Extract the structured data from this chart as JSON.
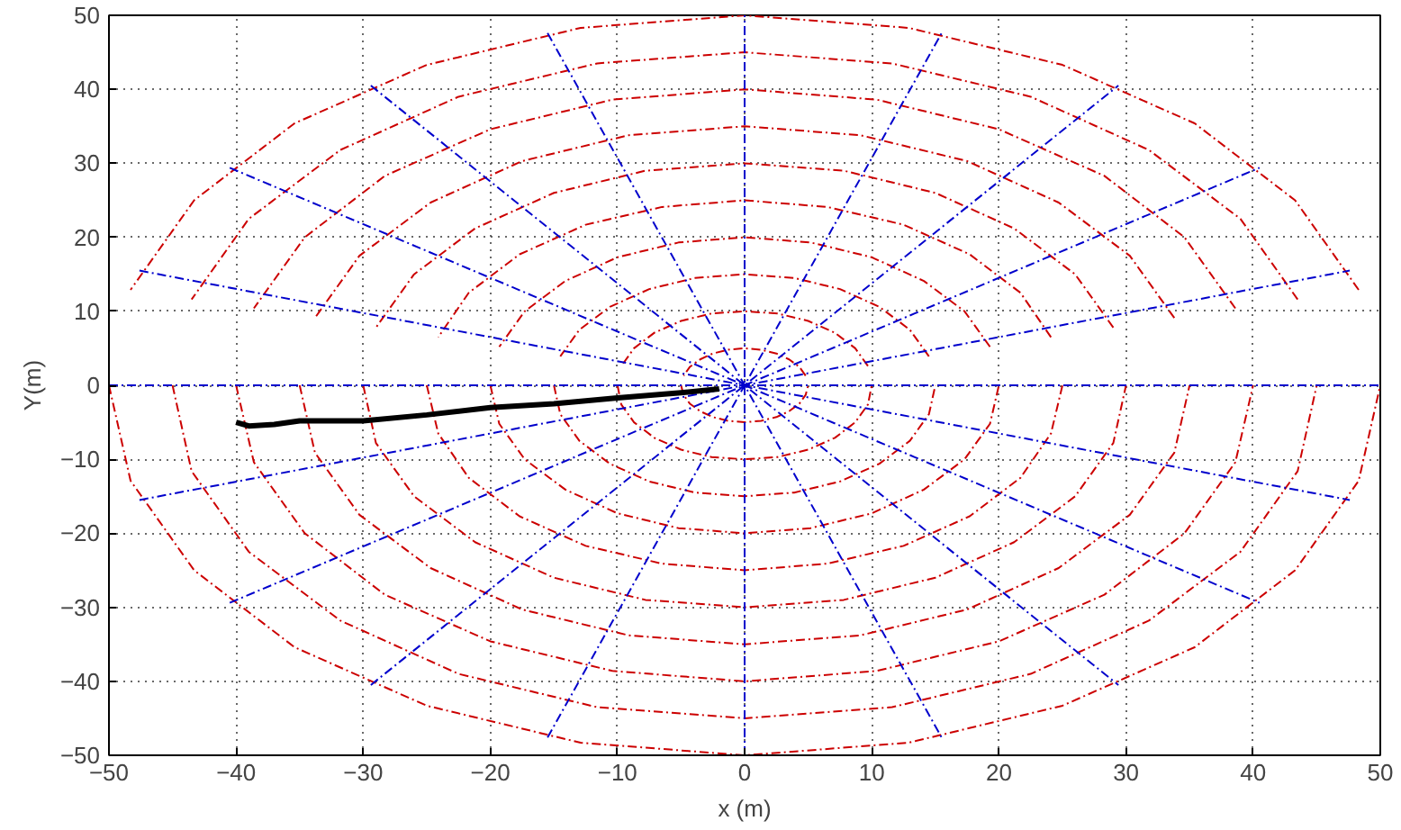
{
  "chart_data": {
    "type": "line",
    "xlabel": "x (m)",
    "ylabel": "Y(m)",
    "xlim": [
      -50,
      50
    ],
    "ylim": [
      -50,
      50
    ],
    "xticks": [
      -50,
      -40,
      -30,
      -20,
      -10,
      0,
      10,
      20,
      30,
      40,
      50
    ],
    "yticks": [
      -50,
      -40,
      -30,
      -20,
      -10,
      0,
      10,
      20,
      30,
      40,
      50
    ],
    "grid": true,
    "marker": "none",
    "series": [
      {
        "color": "#cc0000",
        "line_style": "dashed",
        "x": [
          4.8,
          4.3,
          3.5,
          2.5,
          1.3,
          0,
          -1.3,
          -2.5,
          -3.5,
          -4.3,
          -4.8
        ],
        "values": [
          1.3,
          2.5,
          3.5,
          4.3,
          4.8,
          5,
          4.8,
          4.3,
          3.5,
          2.5,
          1.3
        ]
      },
      {
        "color": "#cc0000",
        "line_style": "dashed",
        "x": [
          -5,
          -4.8,
          -4.3,
          -3.5,
          -2.5,
          -1.3,
          0,
          1.3,
          2.5,
          3.5,
          4.3,
          4.8,
          5
        ],
        "values": [
          0,
          -1.3,
          -2.5,
          -3.5,
          -4.3,
          -4.8,
          -5,
          -4.8,
          -4.3,
          -3.5,
          -2.5,
          -1.3,
          0
        ]
      },
      {
        "color": "#cc0000",
        "line_style": "dashed",
        "x": [
          9.7,
          8.7,
          7.1,
          5,
          2.6,
          0,
          -2.6,
          -5,
          -7.1,
          -8.7,
          -9.7
        ],
        "values": [
          2.6,
          5,
          7.1,
          8.7,
          9.7,
          10,
          9.7,
          8.7,
          7.1,
          5,
          2.6
        ]
      },
      {
        "color": "#cc0000",
        "line_style": "dashed",
        "x": [
          -10,
          -9.7,
          -8.7,
          -7.1,
          -5,
          -2.6,
          0,
          2.6,
          5,
          7.1,
          8.7,
          9.7,
          10
        ],
        "values": [
          0,
          -2.6,
          -5,
          -7.1,
          -8.7,
          -9.7,
          -10,
          -9.7,
          -8.7,
          -7.1,
          -5,
          -2.6,
          0
        ]
      },
      {
        "color": "#cc0000",
        "line_style": "dashed",
        "x": [
          14.5,
          13,
          10.6,
          7.5,
          3.9,
          0,
          -3.9,
          -7.5,
          -10.6,
          -13,
          -14.5
        ],
        "values": [
          3.9,
          7.5,
          10.6,
          13,
          14.5,
          15,
          14.5,
          13,
          10.6,
          7.5,
          3.9
        ]
      },
      {
        "color": "#cc0000",
        "line_style": "dashed",
        "x": [
          -15,
          -14.5,
          -13,
          -10.6,
          -7.5,
          -3.9,
          0,
          3.9,
          7.5,
          10.6,
          13,
          14.5,
          15
        ],
        "values": [
          0,
          -3.9,
          -7.5,
          -10.6,
          -13,
          -14.5,
          -15,
          -14.5,
          -13,
          -10.6,
          -7.5,
          -3.9,
          0
        ]
      },
      {
        "color": "#cc0000",
        "line_style": "dashed",
        "x": [
          19.3,
          17.3,
          14.1,
          10,
          5.2,
          0,
          -5.2,
          -10,
          -14.1,
          -17.3,
          -19.3
        ],
        "values": [
          5.2,
          10,
          14.1,
          17.3,
          19.3,
          20,
          19.3,
          17.3,
          14.1,
          10,
          5.2
        ]
      },
      {
        "color": "#cc0000",
        "line_style": "dashed",
        "x": [
          -20,
          -19.3,
          -17.3,
          -14.1,
          -10,
          -5.2,
          0,
          5.2,
          10,
          14.1,
          17.3,
          19.3,
          20
        ],
        "values": [
          0,
          -5.2,
          -10,
          -14.1,
          -17.3,
          -19.3,
          -20,
          -19.3,
          -17.3,
          -14.1,
          -10,
          -5.2,
          0
        ]
      },
      {
        "color": "#cc0000",
        "line_style": "dashed",
        "x": [
          24.1,
          21.7,
          17.7,
          12.5,
          6.5,
          0,
          -6.5,
          -12.5,
          -17.7,
          -21.7,
          -24.1
        ],
        "values": [
          6.5,
          12.5,
          17.7,
          21.7,
          24.1,
          25,
          24.1,
          21.7,
          17.7,
          12.5,
          6.5
        ]
      },
      {
        "color": "#cc0000",
        "line_style": "dashed",
        "x": [
          -25,
          -24.1,
          -21.7,
          -17.7,
          -12.5,
          -6.5,
          0,
          6.5,
          12.5,
          17.7,
          21.7,
          24.1,
          25
        ],
        "values": [
          0,
          -6.5,
          -12.5,
          -17.7,
          -21.7,
          -24.1,
          -25,
          -24.1,
          -21.7,
          -17.7,
          -12.5,
          -6.5,
          0
        ]
      },
      {
        "color": "#cc0000",
        "line_style": "dashed",
        "x": [
          29,
          26,
          21.2,
          15,
          7.8,
          0,
          -7.8,
          -15,
          -21.2,
          -26,
          -29
        ],
        "values": [
          7.8,
          15,
          21.2,
          26,
          29,
          30,
          29,
          26,
          21.2,
          15,
          7.8
        ]
      },
      {
        "color": "#cc0000",
        "line_style": "dashed",
        "x": [
          -30,
          -29,
          -26,
          -21.2,
          -15,
          -7.8,
          0,
          7.8,
          15,
          21.2,
          26,
          29,
          30
        ],
        "values": [
          0,
          -7.8,
          -15,
          -21.2,
          -26,
          -29,
          -30,
          -29,
          -26,
          -21.2,
          -15,
          -7.8,
          0
        ]
      },
      {
        "color": "#cc0000",
        "line_style": "dashed",
        "x": [
          33.8,
          30.3,
          24.7,
          17.5,
          9.1,
          0,
          -9.1,
          -17.5,
          -24.7,
          -30.3,
          -33.8
        ],
        "values": [
          9.1,
          17.5,
          24.7,
          30.3,
          33.8,
          35,
          33.8,
          30.3,
          24.7,
          17.5,
          9.1
        ]
      },
      {
        "color": "#cc0000",
        "line_style": "dashed",
        "x": [
          -35,
          -33.8,
          -30.3,
          -24.7,
          -17.5,
          -9.1,
          0,
          9.1,
          17.5,
          24.7,
          30.3,
          33.8,
          35
        ],
        "values": [
          0,
          -9.1,
          -17.5,
          -24.7,
          -30.3,
          -33.8,
          -35,
          -33.8,
          -30.3,
          -24.7,
          -17.5,
          -9.1,
          0
        ]
      },
      {
        "color": "#cc0000",
        "line_style": "dashed",
        "x": [
          38.6,
          34.6,
          28.3,
          20,
          10.4,
          0,
          -10.4,
          -20,
          -28.3,
          -34.6,
          -38.6
        ],
        "values": [
          10.4,
          20,
          28.3,
          34.6,
          38.6,
          40,
          38.6,
          34.6,
          28.3,
          20,
          10.4
        ]
      },
      {
        "color": "#cc0000",
        "line_style": "dashed",
        "x": [
          -40,
          -38.6,
          -34.6,
          -28.3,
          -20,
          -10.4,
          0,
          10.4,
          20,
          28.3,
          34.6,
          38.6,
          40
        ],
        "values": [
          0,
          -10.4,
          -20,
          -28.3,
          -34.6,
          -38.6,
          -40,
          -38.6,
          -34.6,
          -28.3,
          -20,
          -10.4,
          0
        ]
      },
      {
        "color": "#cc0000",
        "line_style": "dashed",
        "x": [
          43.5,
          39,
          31.8,
          22.5,
          11.6,
          0,
          -11.6,
          -22.5,
          -31.8,
          -39,
          -43.5
        ],
        "values": [
          11.6,
          22.5,
          31.8,
          39,
          43.5,
          45,
          43.5,
          39,
          31.8,
          22.5,
          11.6
        ]
      },
      {
        "color": "#cc0000",
        "line_style": "dashed",
        "x": [
          -45,
          -43.5,
          -39,
          -31.8,
          -22.5,
          -11.6,
          0,
          11.6,
          22.5,
          31.8,
          39,
          43.5,
          45
        ],
        "values": [
          0,
          -11.6,
          -22.5,
          -31.8,
          -39,
          -43.5,
          -45,
          -43.5,
          -39,
          -31.8,
          -22.5,
          -11.6,
          0
        ]
      },
      {
        "color": "#cc0000",
        "line_style": "dashed",
        "x": [
          48.3,
          43.3,
          35.4,
          25,
          12.9,
          0,
          -12.9,
          -25,
          -35.4,
          -43.3,
          -48.3
        ],
        "values": [
          12.9,
          25,
          35.4,
          43.3,
          48.3,
          50,
          48.3,
          43.3,
          35.4,
          25,
          12.9
        ]
      },
      {
        "color": "#cc0000",
        "line_style": "dashed",
        "x": [
          -50,
          -48.3,
          -43.3,
          -35.4,
          -25,
          -12.9,
          0,
          12.9,
          25,
          35.4,
          43.3,
          48.3,
          50
        ],
        "values": [
          0,
          -12.9,
          -25,
          -35.4,
          -43.3,
          -48.3,
          -50,
          -48.3,
          -43.3,
          -35.4,
          -25,
          -12.9,
          0
        ]
      },
      {
        "color": "#0000cc",
        "line_style": "dashed",
        "x": [
          -50,
          0,
          50
        ],
        "values": [
          0,
          0,
          0
        ]
      },
      {
        "color": "#0000cc",
        "line_style": "dashed",
        "x": [
          -47.6,
          0,
          47.6
        ],
        "values": [
          -15.5,
          0,
          15.5
        ]
      },
      {
        "color": "#0000cc",
        "line_style": "dashed",
        "x": [
          -40.5,
          0,
          40.5
        ],
        "values": [
          -29.4,
          0,
          29.4
        ]
      },
      {
        "color": "#0000cc",
        "line_style": "dashed",
        "x": [
          -29.4,
          0,
          29.4
        ],
        "values": [
          -40.5,
          0,
          40.5
        ]
      },
      {
        "color": "#0000cc",
        "line_style": "dashed",
        "x": [
          -15.5,
          0,
          15.5
        ],
        "values": [
          -47.6,
          0,
          47.6
        ]
      },
      {
        "color": "#0000cc",
        "line_style": "dashed",
        "x": [
          0,
          0,
          0
        ],
        "values": [
          -50,
          0,
          50
        ]
      },
      {
        "color": "#0000cc",
        "line_style": "dashed",
        "x": [
          -15.5,
          0,
          15.5
        ],
        "values": [
          47.6,
          0,
          -47.6
        ]
      },
      {
        "color": "#0000cc",
        "line_style": "dashed",
        "x": [
          -29.4,
          0,
          29.4
        ],
        "values": [
          40.5,
          0,
          -40.5
        ]
      },
      {
        "color": "#0000cc",
        "line_style": "dashed",
        "x": [
          -40.5,
          0,
          40.5
        ],
        "values": [
          29.4,
          0,
          -29.4
        ]
      },
      {
        "color": "#0000cc",
        "line_style": "dashed",
        "x": [
          -47.6,
          0,
          47.6
        ],
        "values": [
          15.5,
          0,
          -15.5
        ]
      },
      {
        "color": "#000000",
        "line_style": "solid",
        "x": [
          -40,
          -39,
          -37,
          -35,
          -30,
          -25,
          -20,
          -15,
          -10,
          -5,
          -2
        ],
        "values": [
          -5,
          -5.5,
          -5.3,
          -4.8,
          -4.8,
          -4,
          -3,
          -2.5,
          -1.7,
          -1,
          -0.5
        ]
      }
    ]
  }
}
